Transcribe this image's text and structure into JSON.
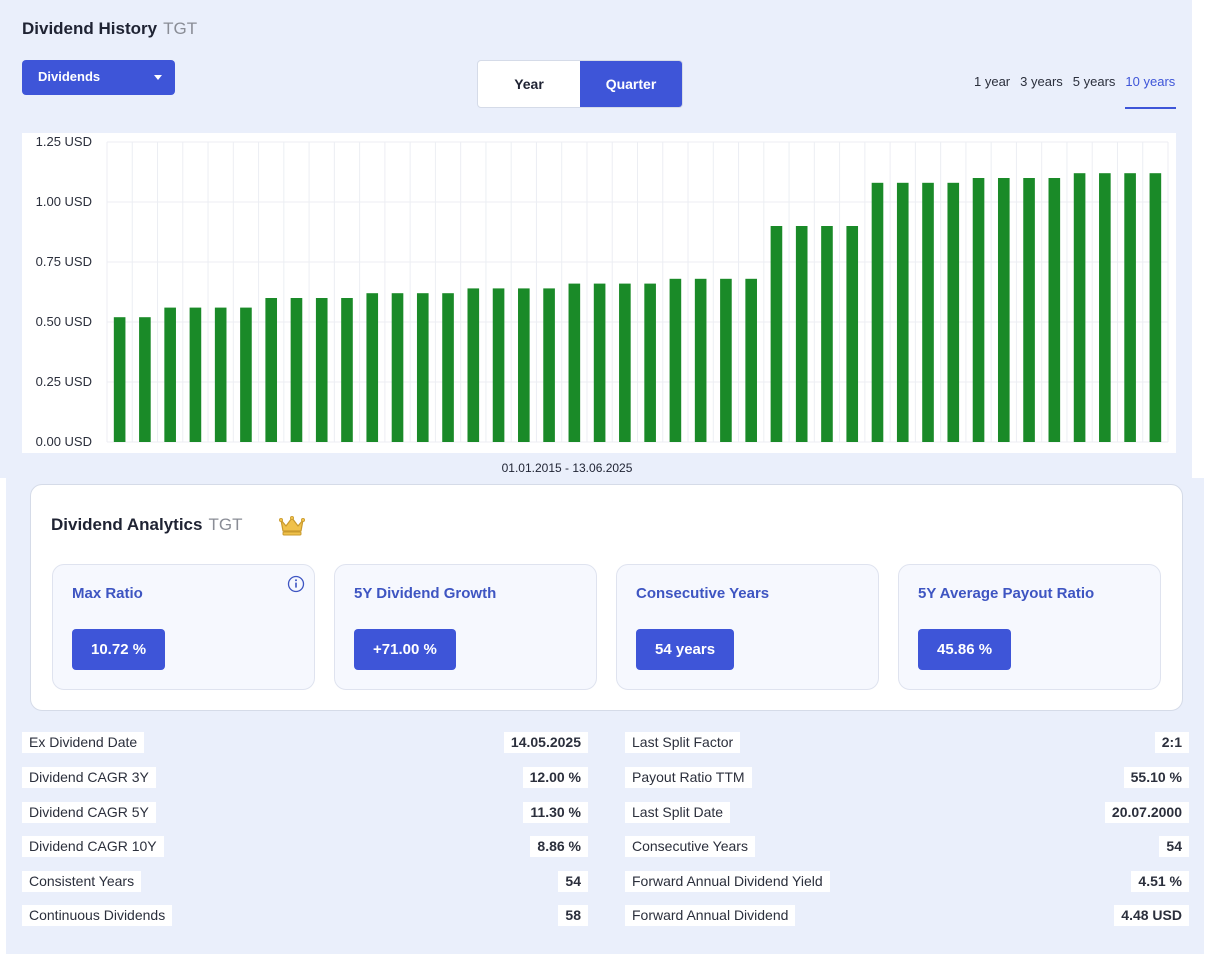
{
  "header": {
    "title": "Dividend History",
    "ticker": "TGT"
  },
  "dropdown": {
    "label": "Dividends"
  },
  "toggle": {
    "year_label": "Year",
    "quarter_label": "Quarter",
    "active": "Quarter"
  },
  "ranges": {
    "items": [
      "1 year",
      "3 years",
      "5 years",
      "10 years"
    ],
    "active": "10 years"
  },
  "colors": {
    "accent": "#3e55d8",
    "bar": "#1a8a28",
    "background": "#eaeffb"
  },
  "chart_data": {
    "type": "bar",
    "x_label": "01.01.2015 - 13.06.2025",
    "y_ticks": [
      "1.25 USD",
      "1.00 USD",
      "0.75 USD",
      "0.50 USD",
      "0.25 USD",
      "0.00 USD"
    ],
    "ylim": [
      0,
      1.25
    ],
    "grid": true,
    "series": [
      {
        "values": [
          0.52,
          0.52,
          0.56,
          0.56,
          0.56,
          0.56,
          0.6,
          0.6,
          0.6,
          0.6,
          0.62,
          0.62,
          0.62,
          0.62,
          0.64,
          0.64,
          0.64,
          0.64,
          0.66,
          0.66,
          0.66,
          0.66,
          0.68,
          0.68,
          0.68,
          0.68,
          0.9,
          0.9,
          0.9,
          0.9,
          1.08,
          1.08,
          1.08,
          1.08,
          1.1,
          1.1,
          1.1,
          1.1,
          1.12,
          1.12,
          1.12,
          1.12
        ]
      }
    ]
  },
  "analytics": {
    "title": "Dividend Analytics",
    "ticker": "TGT",
    "badge_icon": "crown-icon",
    "metrics": [
      {
        "label": "Max Ratio",
        "value": "10.72 %",
        "has_info": true
      },
      {
        "label": "5Y Dividend Growth",
        "value": "+71.00 %"
      },
      {
        "label": "Consecutive Years",
        "value": "54 years"
      },
      {
        "label": "5Y Average Payout Ratio",
        "value": "45.86 %"
      }
    ]
  },
  "stats_left": [
    {
      "label": "Ex Dividend Date",
      "value": "14.05.2025"
    },
    {
      "label": "Dividend CAGR 3Y",
      "value": "12.00 %"
    },
    {
      "label": "Dividend CAGR 5Y",
      "value": "11.30 %"
    },
    {
      "label": "Dividend CAGR 10Y",
      "value": "8.86 %"
    },
    {
      "label": "Consistent Years",
      "value": "54"
    },
    {
      "label": "Continuous Dividends",
      "value": "58"
    }
  ],
  "stats_right": [
    {
      "label": "Last Split Factor",
      "value": "2:1"
    },
    {
      "label": "Payout Ratio TTM",
      "value": "55.10 %"
    },
    {
      "label": "Last Split Date",
      "value": "20.07.2000"
    },
    {
      "label": "Consecutive Years",
      "value": "54"
    },
    {
      "label": "Forward Annual Dividend Yield",
      "value": "4.51 %"
    },
    {
      "label": "Forward Annual Dividend",
      "value": "4.48 USD"
    }
  ]
}
